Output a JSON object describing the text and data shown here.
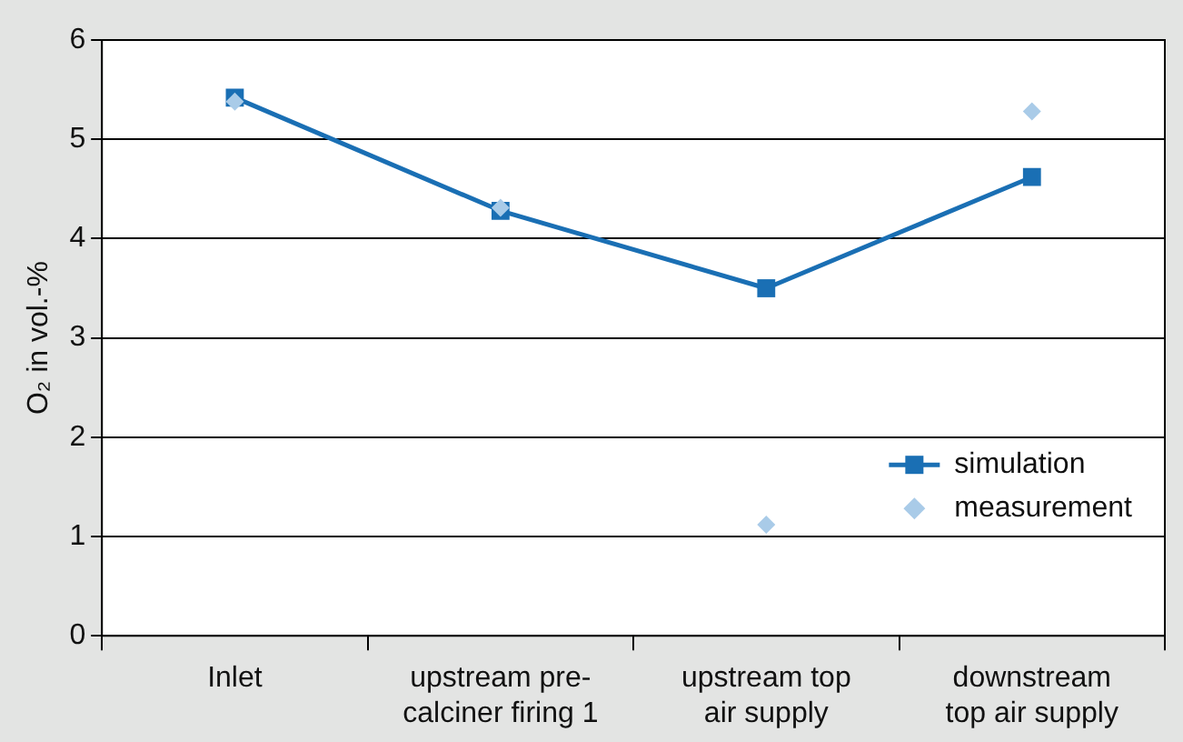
{
  "chart_data": {
    "type": "line",
    "ylabel": "O₂ in vol.-%",
    "categories": [
      "Inlet",
      "upstream pre-calciner firing 1",
      "upstream top air supply",
      "downstream top air supply"
    ],
    "series": [
      {
        "name": "simulation",
        "type": "line",
        "color": "#1a6fb4",
        "marker": "square",
        "values": [
          5.42,
          4.28,
          3.5,
          4.62
        ]
      },
      {
        "name": "measurement",
        "type": "scatter",
        "color": "#a9cbe8",
        "marker": "diamond",
        "values": [
          5.38,
          4.31,
          1.12,
          5.28
        ]
      }
    ],
    "ylim": [
      0,
      6
    ],
    "yticks": [
      0,
      1,
      2,
      3,
      4,
      5,
      6
    ],
    "grid": "y",
    "legend": "bottom right"
  }
}
